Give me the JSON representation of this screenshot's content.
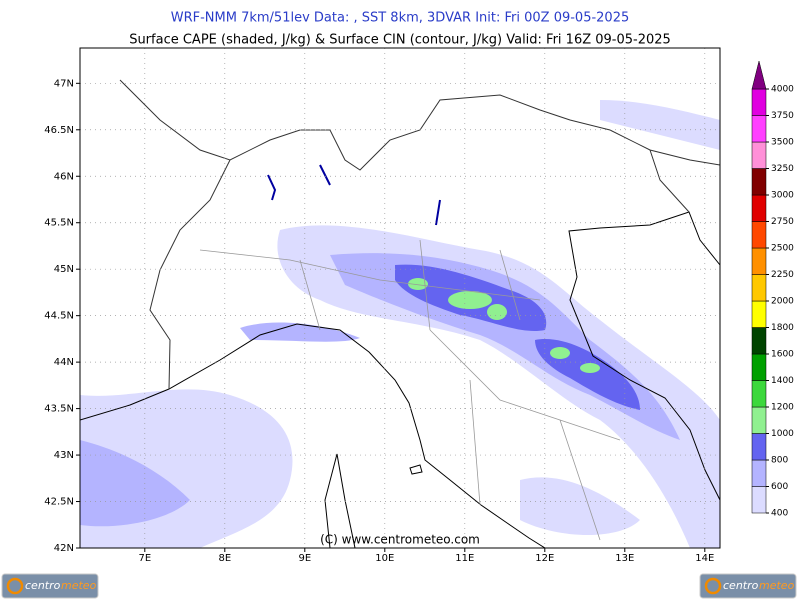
{
  "header": {
    "title": "WRF-NMM 7km/51lev  Data: , SST 8km, 3DVAR  Init: Fri 00Z 09-05-2025",
    "subtitle": "Surface CAPE (shaded, J/kg) & Surface CIN (contour, J/kg)  Valid: Fri 16Z 09-05-2025"
  },
  "map": {
    "lon_range": [
      6.19,
      14.19
    ],
    "lat_range": [
      42,
      47.38
    ],
    "lat_ticks": [
      {
        "value": 42,
        "label": "42N"
      },
      {
        "value": 42.5,
        "label": "42.5N"
      },
      {
        "value": 43,
        "label": "43N"
      },
      {
        "value": 43.5,
        "label": "43.5N"
      },
      {
        "value": 44,
        "label": "44N"
      },
      {
        "value": 44.5,
        "label": "44.5N"
      },
      {
        "value": 45,
        "label": "45N"
      },
      {
        "value": 45.5,
        "label": "45.5N"
      },
      {
        "value": 46,
        "label": "46N"
      },
      {
        "value": 46.5,
        "label": "46.5N"
      },
      {
        "value": 47,
        "label": "47N"
      }
    ],
    "lon_ticks": [
      {
        "value": 7,
        "label": "7E"
      },
      {
        "value": 8,
        "label": "8E"
      },
      {
        "value": 9,
        "label": "9E"
      },
      {
        "value": 10,
        "label": "10E"
      },
      {
        "value": 11,
        "label": "11E"
      },
      {
        "value": 12,
        "label": "12E"
      },
      {
        "value": 13,
        "label": "13E"
      },
      {
        "value": 14,
        "label": "14E"
      }
    ],
    "credit": "(C)  www.centrometeo.com"
  },
  "colorbar": {
    "levels": [
      400,
      600,
      800,
      1000,
      1200,
      1400,
      1600,
      1800,
      2000,
      2250,
      2500,
      2750,
      3000,
      3250,
      3500,
      3750,
      4000
    ],
    "colors": [
      "#dcdcff",
      "#b4b4ff",
      "#6464f0",
      "#90f090",
      "#3cd83c",
      "#00a000",
      "#004400",
      "#ffff00",
      "#ffc800",
      "#ff9000",
      "#ff4800",
      "#e00000",
      "#800000",
      "#ff90d8",
      "#ff40ff",
      "#e000e0"
    ],
    "over_color": "#800080"
  },
  "logos": [
    {
      "part1": "centro",
      "part2": "meteo"
    },
    {
      "part1": "centro",
      "part2": "meteo"
    }
  ]
}
